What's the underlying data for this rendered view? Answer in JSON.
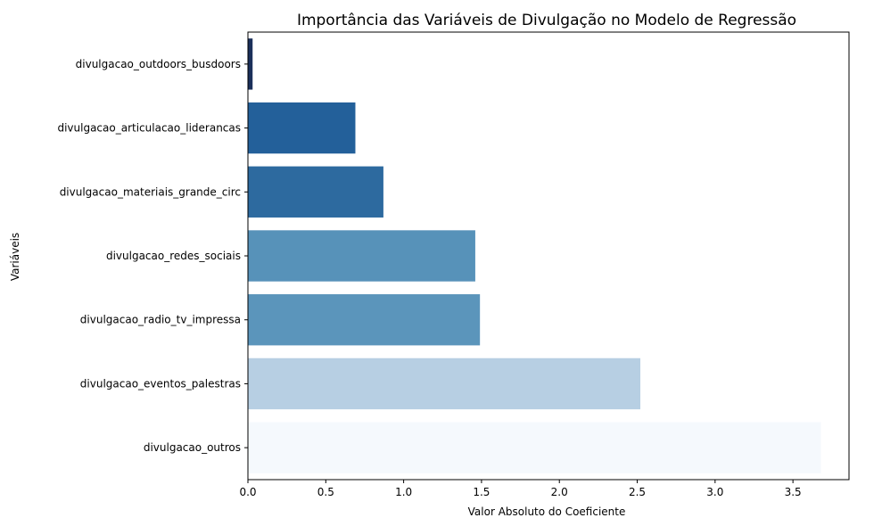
{
  "chart_data": {
    "type": "bar",
    "orientation": "horizontal",
    "title": "Importância das Variáveis de Divulgação no Modelo de Regressão",
    "xlabel": "Valor Absoluto do Coeficiente",
    "ylabel": "Variáveis",
    "xlim": [
      0,
      3.86
    ],
    "xticks": [
      "0.0",
      "0.5",
      "1.0",
      "1.5",
      "2.0",
      "2.5",
      "3.0",
      "3.5"
    ],
    "grid": false,
    "categories": [
      "divulgacao_outdoors_busdoors",
      "divulgacao_articulacao_liderancas",
      "divulgacao_materiais_grande_circ",
      "divulgacao_redes_sociais",
      "divulgacao_radio_tv_impressa",
      "divulgacao_eventos_palestras",
      "divulgacao_outros"
    ],
    "values": [
      0.03,
      0.69,
      0.87,
      1.46,
      1.49,
      2.52,
      3.68
    ],
    "colors": [
      "#1a2f5a",
      "#23609a",
      "#2d6a9f",
      "#5792b9",
      "#5b95bb",
      "#b7cfe3",
      "#f5f9fd"
    ]
  }
}
